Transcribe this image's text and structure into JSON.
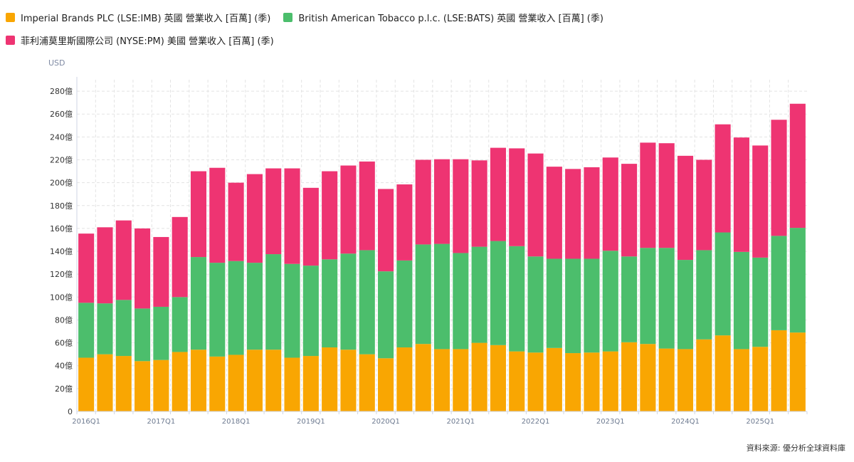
{
  "legend": {
    "imb": "Imperial Brands PLC (LSE:IMB) 英國 營業收入 [百萬] (季)",
    "bats": "British American Tobacco p.l.c. (LSE:BATS) 英國 營業收入 [百萬] (季)",
    "pm": "菲利浦莫里斯國際公司 (NYSE:PM) 美國 營業收入 [百萬] (季)"
  },
  "unit": "USD",
  "source": "資料來源: 優分析全球資料庫",
  "colors": {
    "imb": "#f9a602",
    "bats": "#4cbe6c",
    "pm": "#ee3472",
    "grid": "#e3e3e3",
    "axis": "#cfd6e6"
  },
  "chart_data": {
    "type": "bar",
    "stacked": true,
    "y_unit_label": "USD",
    "ylim": [
      0,
      290
    ],
    "y_ticks": [
      {
        "value": 0,
        "label": "0"
      },
      {
        "value": 20,
        "label": "20億"
      },
      {
        "value": 40,
        "label": "40億"
      },
      {
        "value": 60,
        "label": "60億"
      },
      {
        "value": 80,
        "label": "80億"
      },
      {
        "value": 100,
        "label": "100億"
      },
      {
        "value": 120,
        "label": "120億"
      },
      {
        "value": 140,
        "label": "140億"
      },
      {
        "value": 160,
        "label": "160億"
      },
      {
        "value": 180,
        "label": "180億"
      },
      {
        "value": 200,
        "label": "200億"
      },
      {
        "value": 220,
        "label": "220億"
      },
      {
        "value": 240,
        "label": "240億"
      },
      {
        "value": 260,
        "label": "260億"
      },
      {
        "value": 280,
        "label": "280億"
      }
    ],
    "x_tick_labels": [
      {
        "index": 0,
        "label": "2016Q1"
      },
      {
        "index": 4,
        "label": "2017Q1"
      },
      {
        "index": 8,
        "label": "2018Q1"
      },
      {
        "index": 12,
        "label": "2019Q1"
      },
      {
        "index": 16,
        "label": "2020Q1"
      },
      {
        "index": 20,
        "label": "2021Q1"
      },
      {
        "index": 24,
        "label": "2022Q1"
      },
      {
        "index": 28,
        "label": "2023Q1"
      },
      {
        "index": 32,
        "label": "2024Q1"
      },
      {
        "index": 36,
        "label": "2025Q1"
      }
    ],
    "categories": [
      "2016Q1",
      "2016Q2",
      "2016Q3",
      "2016Q4",
      "2017Q1",
      "2017Q2",
      "2017Q3",
      "2017Q4",
      "2018Q1",
      "2018Q2",
      "2018Q3",
      "2018Q4",
      "2019Q1",
      "2019Q2",
      "2019Q3",
      "2019Q4",
      "2020Q1",
      "2020Q2",
      "2020Q3",
      "2020Q4",
      "2021Q1",
      "2021Q2",
      "2021Q3",
      "2021Q4",
      "2022Q1",
      "2022Q2",
      "2022Q3",
      "2022Q4",
      "2023Q1",
      "2023Q2",
      "2023Q3",
      "2023Q4",
      "2024Q1",
      "2024Q2",
      "2024Q3",
      "2024Q4",
      "2025Q1",
      "2025Q2",
      "2025Q3"
    ],
    "series": [
      {
        "key": "imb",
        "name": "Imperial Brands PLC (LSE:IMB) 英國 營業收入 [百萬] (季)",
        "values": [
          47,
          50,
          48.5,
          44,
          45,
          52,
          54,
          48,
          49.5,
          54,
          54,
          47,
          48.5,
          56,
          54,
          50,
          46.5,
          56,
          59,
          54.5,
          54.5,
          60,
          58,
          52.5,
          51.5,
          55.5,
          51,
          51.5,
          52.5,
          60.5,
          59,
          55,
          54.5,
          63,
          66.5,
          54.5,
          56.5,
          71,
          69
        ]
      },
      {
        "key": "bats",
        "name": "British American Tobacco p.l.c. (LSE:BATS) 英國 營業收入 [百萬] (季)",
        "values": [
          48,
          44.5,
          49,
          46,
          46.5,
          48,
          81,
          82,
          82,
          76,
          83.5,
          82,
          79,
          77,
          84,
          91,
          76,
          76,
          87,
          92,
          84,
          84,
          91,
          92,
          84,
          78,
          82.5,
          82,
          88,
          75,
          84,
          88,
          78,
          78,
          90,
          85,
          78,
          82.5,
          91.5
        ]
      },
      {
        "key": "pm",
        "name": "菲利浦莫里斯國際公司 (NYSE:PM) 美國 營業收入 [百萬] (季)",
        "values": [
          60.5,
          66.5,
          69.5,
          70,
          61,
          70,
          75,
          83,
          68.5,
          77.5,
          75,
          83.5,
          68,
          77,
          77,
          77.5,
          72,
          66.5,
          74,
          74,
          82,
          75.5,
          81.5,
          85.5,
          90,
          80.5,
          78.5,
          80,
          81.5,
          81,
          92,
          91.5,
          91,
          79,
          94.5,
          100,
          98,
          101.5,
          108.5
        ]
      }
    ]
  }
}
